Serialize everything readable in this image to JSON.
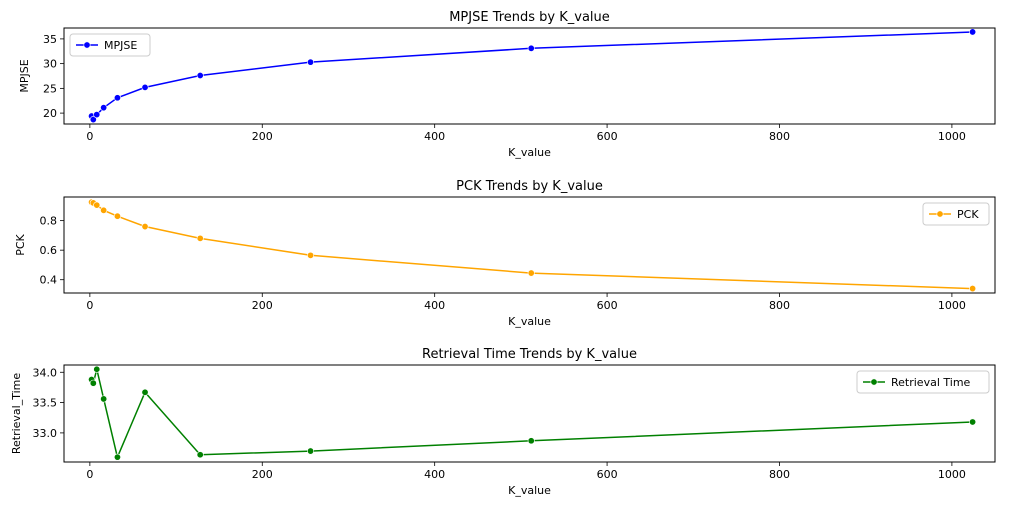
{
  "chart_data": [
    {
      "type": "line",
      "title": "MPJSE Trends by K_value",
      "xlabel": "K_value",
      "ylabel": "MPJSE",
      "xlim": [
        -30,
        1050
      ],
      "ylim": [
        17.8,
        37.2
      ],
      "xticks": [
        0,
        200,
        400,
        600,
        800,
        1000
      ],
      "yticks": [
        20,
        25,
        30,
        35
      ],
      "xtick_labels": [
        "0",
        "200",
        "400",
        "600",
        "800",
        "1000"
      ],
      "ytick_labels": [
        "20",
        "25",
        "30",
        "35"
      ],
      "legend_position": "upper-left",
      "series": [
        {
          "name": "MPJSE",
          "color": "#0000ff",
          "x": [
            2,
            4,
            8,
            16,
            32,
            64,
            128,
            256,
            512,
            1024
          ],
          "y": [
            19.4,
            18.7,
            19.7,
            21.1,
            23.1,
            25.2,
            27.6,
            30.3,
            33.1,
            36.4
          ]
        }
      ]
    },
    {
      "type": "line",
      "title": "PCK Trends by K_value",
      "xlabel": "K_value",
      "ylabel": "PCK",
      "xlim": [
        -30,
        1050
      ],
      "ylim": [
        0.31,
        0.96
      ],
      "xticks": [
        0,
        200,
        400,
        600,
        800,
        1000
      ],
      "yticks": [
        0.4,
        0.6,
        0.8
      ],
      "xtick_labels": [
        "0",
        "200",
        "400",
        "600",
        "800",
        "1000"
      ],
      "ytick_labels": [
        "0.4",
        "0.6",
        "0.8"
      ],
      "legend_position": "upper-right",
      "series": [
        {
          "name": "PCK",
          "color": "#ffa500",
          "x": [
            2,
            4,
            8,
            16,
            32,
            64,
            128,
            256,
            512,
            1024
          ],
          "y": [
            0.925,
            0.92,
            0.905,
            0.87,
            0.83,
            0.76,
            0.68,
            0.565,
            0.445,
            0.34
          ]
        }
      ]
    },
    {
      "type": "line",
      "title": "Retrieval Time Trends by K_value",
      "xlabel": "K_value",
      "ylabel": "Retrieval_Time",
      "xlim": [
        -30,
        1050
      ],
      "ylim": [
        32.52,
        34.12
      ],
      "xticks": [
        0,
        200,
        400,
        600,
        800,
        1000
      ],
      "yticks": [
        33.0,
        33.5,
        34.0
      ],
      "xtick_labels": [
        "0",
        "200",
        "400",
        "600",
        "800",
        "1000"
      ],
      "ytick_labels": [
        "33.0",
        "33.5",
        "34.0"
      ],
      "legend_position": "upper-right",
      "series": [
        {
          "name": "Retrieval Time",
          "color": "#008000",
          "x": [
            2,
            4,
            8,
            16,
            32,
            64,
            128,
            256,
            512,
            1024
          ],
          "y": [
            33.88,
            33.82,
            34.05,
            33.56,
            32.6,
            33.67,
            32.64,
            32.7,
            32.87,
            33.18
          ]
        }
      ]
    }
  ]
}
